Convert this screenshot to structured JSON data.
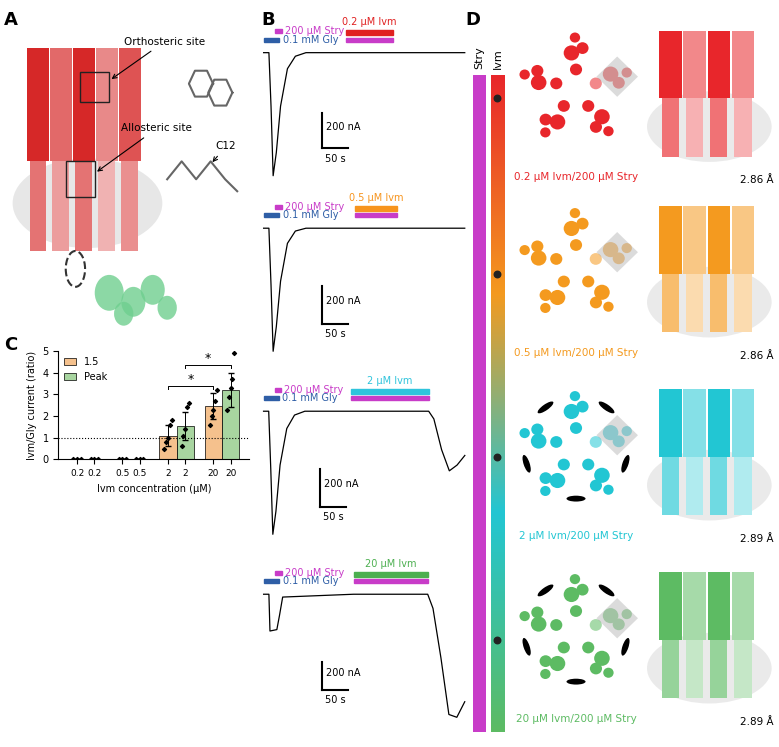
{
  "panel_labels": [
    "A",
    "B",
    "C",
    "D"
  ],
  "panel_a": {
    "labels": [
      "Orthosteric site",
      "Allosteric site",
      "C12"
    ]
  },
  "panel_b": {
    "scale_bar": {
      "current": 200,
      "time": 50,
      "current_label": "200 nA",
      "time_label": "50 s"
    },
    "traces": [
      {
        "gly": {
          "label": "0.1 mM Gly",
          "color": "#2e5ea6",
          "start": 0,
          "end": 30
        },
        "stry_pre": {
          "label": "200 µM Stry",
          "color": "#c83cc8",
          "start": 22,
          "end": 34
        },
        "ivm": {
          "label": "0.2 µM Ivm",
          "color": "#e02020",
          "start": 155,
          "end": 245
        },
        "stry_co": {
          "color": "#c83cc8",
          "start": 155,
          "end": 245
        },
        "t": [
          0,
          10,
          14,
          18,
          24,
          32,
          45,
          60,
          80,
          380
        ],
        "i": [
          0,
          0,
          -300,
          -690,
          -560,
          -300,
          -90,
          -20,
          0,
          0
        ]
      },
      {
        "gly": {
          "label": "0.1 mM Gly",
          "color": "#2e5ea6",
          "start": 0,
          "end": 30
        },
        "stry_pre": {
          "label": "200 µM Stry",
          "color": "#c83cc8",
          "start": 22,
          "end": 34
        },
        "ivm": {
          "label": "0.5 µM Ivm",
          "color": "#f7941d",
          "start": 172,
          "end": 252
        },
        "stry_co": {
          "color": "#c83cc8",
          "start": 172,
          "end": 252
        },
        "t": [
          0,
          10,
          14,
          18,
          24,
          32,
          45,
          60,
          80,
          380
        ],
        "i": [
          0,
          0,
          -300,
          -650,
          -520,
          -280,
          -80,
          -15,
          0,
          0
        ]
      },
      {
        "gly": {
          "label": "0.1 mM Gly",
          "color": "#2e5ea6",
          "start": 0,
          "end": 30
        },
        "stry_pre": {
          "label": "200 µM Stry",
          "color": "#c83cc8",
          "start": 22,
          "end": 34
        },
        "ivm": {
          "label": "2 µM Ivm",
          "color": "#2fc4dc",
          "start": 170,
          "end": 320
        },
        "stry_co": {
          "color": "#c83cc8",
          "start": 170,
          "end": 320
        },
        "t": [
          0,
          10,
          14,
          18,
          24,
          32,
          45,
          60,
          80,
          320,
          330,
          345,
          360,
          375,
          390
        ],
        "i": [
          0,
          0,
          -300,
          -640,
          -520,
          -280,
          -90,
          -20,
          0,
          0,
          -40,
          -200,
          -310,
          -280,
          -230
        ]
      },
      {
        "gly": {
          "label": "0.1 mM Gly",
          "color": "#2e5ea6",
          "start": 0,
          "end": 30
        },
        "stry_pre": {
          "label": "200 µM Stry",
          "color": "#c83cc8",
          "start": 22,
          "end": 34
        },
        "ivm": {
          "label": "20 µM Ivm",
          "color": "#4caf50",
          "start": 170,
          "end": 310
        },
        "stry_co": {
          "color": "#c83cc8",
          "start": 170,
          "end": 310
        },
        "t": [
          0,
          10,
          12,
          25,
          30,
          36,
          170,
          310,
          320,
          335,
          350,
          365,
          380
        ],
        "i": [
          0,
          0,
          -260,
          -250,
          -150,
          -20,
          0,
          0,
          -100,
          -450,
          -850,
          -870,
          -760
        ]
      }
    ]
  },
  "chart_data": {
    "type": "bar",
    "categories": [
      "0.2",
      "0.5",
      "2",
      "20"
    ],
    "xlabel": "Ivm concentration (µM)",
    "ylabel": "Ivm/Gly current (ratio)",
    "ylim": [
      0,
      5
    ],
    "yticks": [
      0,
      1,
      2,
      3,
      4,
      5
    ],
    "legend": "upper left",
    "reference_y": 1,
    "series": [
      {
        "name": "1.5",
        "color": "#f5c18d",
        "values": [
          0.01,
          0.02,
          1.1,
          2.45
        ],
        "errors": [
          0.005,
          0.01,
          0.5,
          0.6
        ],
        "points": [
          [
            0.0,
            0.01,
            0.02
          ],
          [
            0.01,
            0.02,
            0.03
          ],
          [
            0.5,
            0.8,
            1.0,
            1.6,
            1.8
          ],
          [
            1.6,
            2.0,
            2.3,
            2.7,
            3.2
          ]
        ]
      },
      {
        "name": "Peak",
        "color": "#a8d5a0",
        "values": [
          0.02,
          0.03,
          1.55,
          3.2
        ],
        "errors": [
          0.01,
          0.01,
          0.65,
          0.8
        ],
        "points": [
          [
            0.01,
            0.02,
            0.03
          ],
          [
            0.02,
            0.03,
            0.04
          ],
          [
            0.6,
            1.1,
            1.4,
            2.4,
            2.6
          ],
          [
            2.3,
            2.9,
            3.3,
            3.7,
            4.9
          ]
        ]
      }
    ],
    "significance": [
      {
        "series": "1.5",
        "from": "2",
        "to": "20",
        "label": "*"
      },
      {
        "series": "Peak",
        "from": "2",
        "to": "20",
        "label": "*"
      }
    ]
  },
  "panel_d": {
    "gradient_labels": [
      "Stry",
      "Ivm"
    ],
    "stry_color": "#c83cc8",
    "rows": [
      {
        "caption": "0.2 µM Ivm/200 µM Stry",
        "resolution": "2.86 Å",
        "color": "#e8262b",
        "ligand_density": false
      },
      {
        "caption": "0.5 µM Ivm/200 µM Stry",
        "resolution": "2.86 Å",
        "color": "#f49a1f",
        "ligand_density": false
      },
      {
        "caption": "2 µM Ivm/200 µM Stry",
        "resolution": "2.89 Å",
        "color": "#22c6d3",
        "ligand_density": true
      },
      {
        "caption": "20 µM Ivm/200 µM Stry",
        "resolution": "2.89 Å",
        "color": "#5dbb63",
        "ligand_density": true
      }
    ]
  }
}
